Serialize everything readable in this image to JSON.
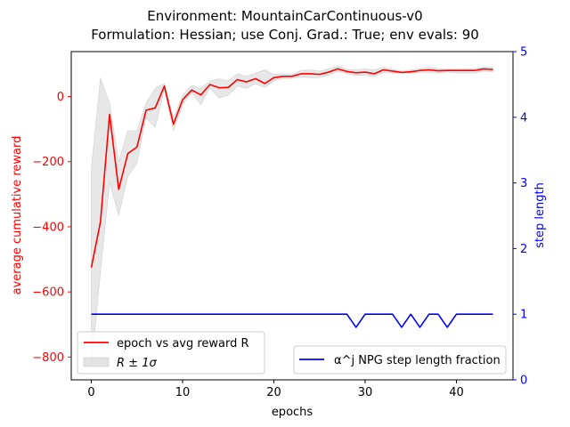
{
  "chart_data": {
    "type": "line",
    "title_line1": "Environment: MountainCarContinuous-v0",
    "title_line2": "Formulation: Hessian; use Conj. Grad.: True; env evals: 90",
    "xlabel": "epochs",
    "ylabel_left": "average cumulative reward",
    "ylabel_right": "step length",
    "xlim": [
      -2.2,
      46.2
    ],
    "ylim_left": [
      -870,
      138
    ],
    "ylim_right": [
      0,
      5
    ],
    "xticks": [
      0,
      10,
      20,
      30,
      40
    ],
    "yticks_left": [
      -800,
      -600,
      -400,
      -200,
      0
    ],
    "yticks_right": [
      0,
      1,
      2,
      3,
      4,
      5
    ],
    "x": [
      0,
      1,
      2,
      3,
      4,
      5,
      6,
      7,
      8,
      9,
      10,
      11,
      12,
      13,
      14,
      15,
      16,
      17,
      18,
      19,
      20,
      21,
      22,
      23,
      24,
      25,
      26,
      27,
      28,
      29,
      30,
      31,
      32,
      33,
      34,
      35,
      36,
      37,
      38,
      39,
      40,
      41,
      42,
      43,
      44
    ],
    "series": [
      {
        "name": "epoch vs avg reward R",
        "axis": "left",
        "color": "#ff0000",
        "values": [
          -525,
          -385,
          -55,
          -285,
          -175,
          -155,
          -42,
          -35,
          32,
          -85,
          -10,
          20,
          5,
          37,
          27,
          28,
          52,
          45,
          55,
          40,
          58,
          62,
          62,
          70,
          70,
          68,
          75,
          85,
          77,
          73,
          75,
          70,
          82,
          78,
          74,
          76,
          80,
          82,
          79,
          80,
          80,
          80,
          80,
          85,
          83
        ]
      },
      {
        "name": "R ± 1σ",
        "axis": "left",
        "type": "band",
        "color": "#b0b0b0",
        "lower": [
          -830,
          -540,
          -265,
          -365,
          -245,
          -205,
          -65,
          -95,
          22,
          -105,
          -25,
          12,
          -25,
          27,
          -5,
          5,
          32,
          25,
          40,
          28,
          48,
          55,
          56,
          60,
          58,
          58,
          65,
          77,
          70,
          65,
          65,
          62,
          74,
          72,
          72,
          72,
          74,
          75,
          72,
          75,
          72,
          72,
          72,
          78,
          76
        ],
        "upper": [
          -220,
          58,
          -20,
          -200,
          -105,
          -105,
          -20,
          25,
          40,
          -65,
          5,
          35,
          25,
          47,
          55,
          48,
          70,
          62,
          72,
          82,
          68,
          70,
          68,
          80,
          82,
          78,
          85,
          93,
          84,
          82,
          85,
          82,
          90,
          84,
          78,
          82,
          85,
          90,
          86,
          84,
          84,
          86,
          86,
          90,
          90
        ]
      },
      {
        "name": "α^j NPG step length fraction",
        "axis": "right",
        "color": "#0000ff",
        "values": [
          1,
          1,
          1,
          1,
          1,
          1,
          1,
          1,
          1,
          1,
          1,
          1,
          1,
          1,
          1,
          1,
          1,
          1,
          1,
          1,
          1,
          1,
          1,
          1,
          1,
          1,
          1,
          1,
          1,
          0.8,
          1,
          1,
          1,
          1,
          0.8,
          1,
          0.8,
          1,
          1,
          0.8,
          1,
          1,
          1,
          1,
          1
        ]
      }
    ],
    "legend_left": {
      "placement": "lower-left",
      "line_label": "epoch vs avg reward R",
      "band_label": "R ±  1σ"
    },
    "legend_right": {
      "placement": "lower-right",
      "line_label": "α^j NPG step length fraction"
    },
    "grid": false
  }
}
